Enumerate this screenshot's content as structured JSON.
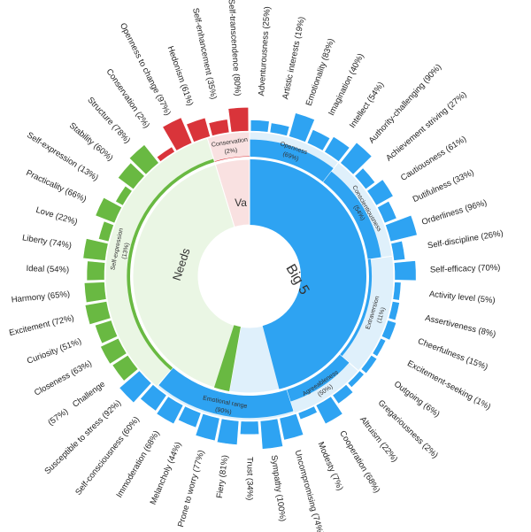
{
  "chart_data": {
    "type": "sunburst",
    "colors": {
      "big5": "#2ea3f2",
      "big5_light": "#dff0fb",
      "needs": "#69b942",
      "needs_light": "#eaf6e4",
      "values": "#d9343a",
      "values_light": "#f9e1e1"
    },
    "root": [
      {
        "name": "Big 5",
        "level": 87,
        "color_key": "big5"
      },
      {
        "name": "Needs",
        "level": 5,
        "color_key": "needs"
      },
      {
        "name": "Va",
        "level": 0,
        "color_key": "values"
      }
    ],
    "categories": [
      {
        "name": "Openness",
        "value": "(69%)",
        "level": 69,
        "color_key": "big5"
      },
      {
        "name": "Conscientiousness",
        "value": "(54%)",
        "level": 54,
        "color_key": "big5"
      },
      {
        "name": "Extraversion",
        "value": "(11%)",
        "level": 11,
        "color_key": "big5"
      },
      {
        "name": "Agreeableness",
        "value": "(50%)",
        "level": 50,
        "color_key": "big5"
      },
      {
        "name": "Emotional range",
        "value": "(90%)",
        "level": 90,
        "color_key": "big5"
      },
      {
        "name": "Self-expression",
        "value": "(13%)",
        "level": 13,
        "color_key": "needs"
      },
      {
        "name": "Conservation",
        "value": "(2%)",
        "level": 2,
        "color_key": "values"
      }
    ],
    "traits": [
      {
        "label": "Adventurousness (25%)",
        "value": 25,
        "color_key": "big5"
      },
      {
        "label": "Artistic interests (19%)",
        "value": 19,
        "color_key": "big5"
      },
      {
        "label": "Emotionality (83%)",
        "value": 83,
        "color_key": "big5"
      },
      {
        "label": "Imagination (40%)",
        "value": 40,
        "color_key": "big5"
      },
      {
        "label": "Intellect (54%)",
        "value": 54,
        "color_key": "big5"
      },
      {
        "label": "Authority-challenging (90%)",
        "value": 90,
        "color_key": "big5"
      },
      {
        "label": "Achievement striving (27%)",
        "value": 27,
        "color_key": "big5"
      },
      {
        "label": "Cautiousness (61%)",
        "value": 61,
        "color_key": "big5"
      },
      {
        "label": "Dutifulness (33%)",
        "value": 33,
        "color_key": "big5"
      },
      {
        "label": "Orderliness (96%)",
        "value": 96,
        "color_key": "big5"
      },
      {
        "label": "Self-discipline (26%)",
        "value": 26,
        "color_key": "big5"
      },
      {
        "label": "Self-efficacy (70%)",
        "value": 70,
        "color_key": "big5"
      },
      {
        "label": "Activity level (5%)",
        "value": 5,
        "color_key": "big5"
      },
      {
        "label": "Assertiveness (8%)",
        "value": 8,
        "color_key": "big5"
      },
      {
        "label": "Cheerfulness (15%)",
        "value": 15,
        "color_key": "big5"
      },
      {
        "label": "Excitement-seeking (1%)",
        "value": 1,
        "color_key": "big5"
      },
      {
        "label": "Outgoing (6%)",
        "value": 6,
        "color_key": "big5"
      },
      {
        "label": "Gregariousness (2%)",
        "value": 2,
        "color_key": "big5"
      },
      {
        "label": "Altruism (22%)",
        "value": 22,
        "color_key": "big5"
      },
      {
        "label": "Cooperation (68%)",
        "value": 68,
        "color_key": "big5"
      },
      {
        "label": "Modesty (7%)",
        "value": 7,
        "color_key": "big5"
      },
      {
        "label": "Uncompromising (74%)",
        "value": 74,
        "color_key": "big5"
      },
      {
        "label": "Sympathy (100%)",
        "value": 100,
        "color_key": "big5"
      },
      {
        "label": "Trust (34%)",
        "value": 34,
        "color_key": "big5"
      },
      {
        "label": "Fiery (81%)",
        "value": 81,
        "color_key": "big5"
      },
      {
        "label": "Prone to worry (77%)",
        "value": 77,
        "color_key": "big5"
      },
      {
        "label": "Melancholy (44%)",
        "value": 44,
        "color_key": "big5"
      },
      {
        "label": "Immoderation (68%)",
        "value": 68,
        "color_key": "big5"
      },
      {
        "label": "Self-consciousness (60%)",
        "value": 60,
        "color_key": "big5"
      },
      {
        "label": "Susceptible to stress (92%)",
        "value": 92,
        "color_key": "big5"
      },
      {
        "label": "Challenge",
        "value": 57,
        "color_key": "needs"
      },
      {
        "label": "Closeness (63%)",
        "value": 63,
        "color_key": "needs"
      },
      {
        "label": "Curiosity (51%)",
        "value": 51,
        "color_key": "needs"
      },
      {
        "label": "Excitement (72%)",
        "value": 72,
        "color_key": "needs"
      },
      {
        "label": "Harmony (65%)",
        "value": 65,
        "color_key": "needs"
      },
      {
        "label": "Ideal (54%)",
        "value": 54,
        "color_key": "needs"
      },
      {
        "label": "Liberty (74%)",
        "value": 74,
        "color_key": "needs"
      },
      {
        "label": "Love (22%)",
        "value": 22,
        "color_key": "needs"
      },
      {
        "label": "Practicality (66%)",
        "value": 66,
        "color_key": "needs"
      },
      {
        "label": "Self-expression (13%)",
        "value": 13,
        "color_key": "needs"
      },
      {
        "label": "Stability (60%)",
        "value": 60,
        "color_key": "needs"
      },
      {
        "label": "Structure (78%)",
        "value": 78,
        "color_key": "needs"
      },
      {
        "label": "Conservation (2%)",
        "value": 2,
        "color_key": "values"
      },
      {
        "label": "Openness to change (97%)",
        "value": 97,
        "color_key": "values"
      },
      {
        "label": "Hedonism (61%)",
        "value": 61,
        "color_key": "values"
      },
      {
        "label": "Self-enhancement (35%)",
        "value": 35,
        "color_key": "values"
      },
      {
        "label": "Self-transcendence (80%)",
        "value": 80,
        "color_key": "values"
      }
    ],
    "extra_labels": [
      {
        "label": "(57%)",
        "value": 57
      }
    ]
  }
}
